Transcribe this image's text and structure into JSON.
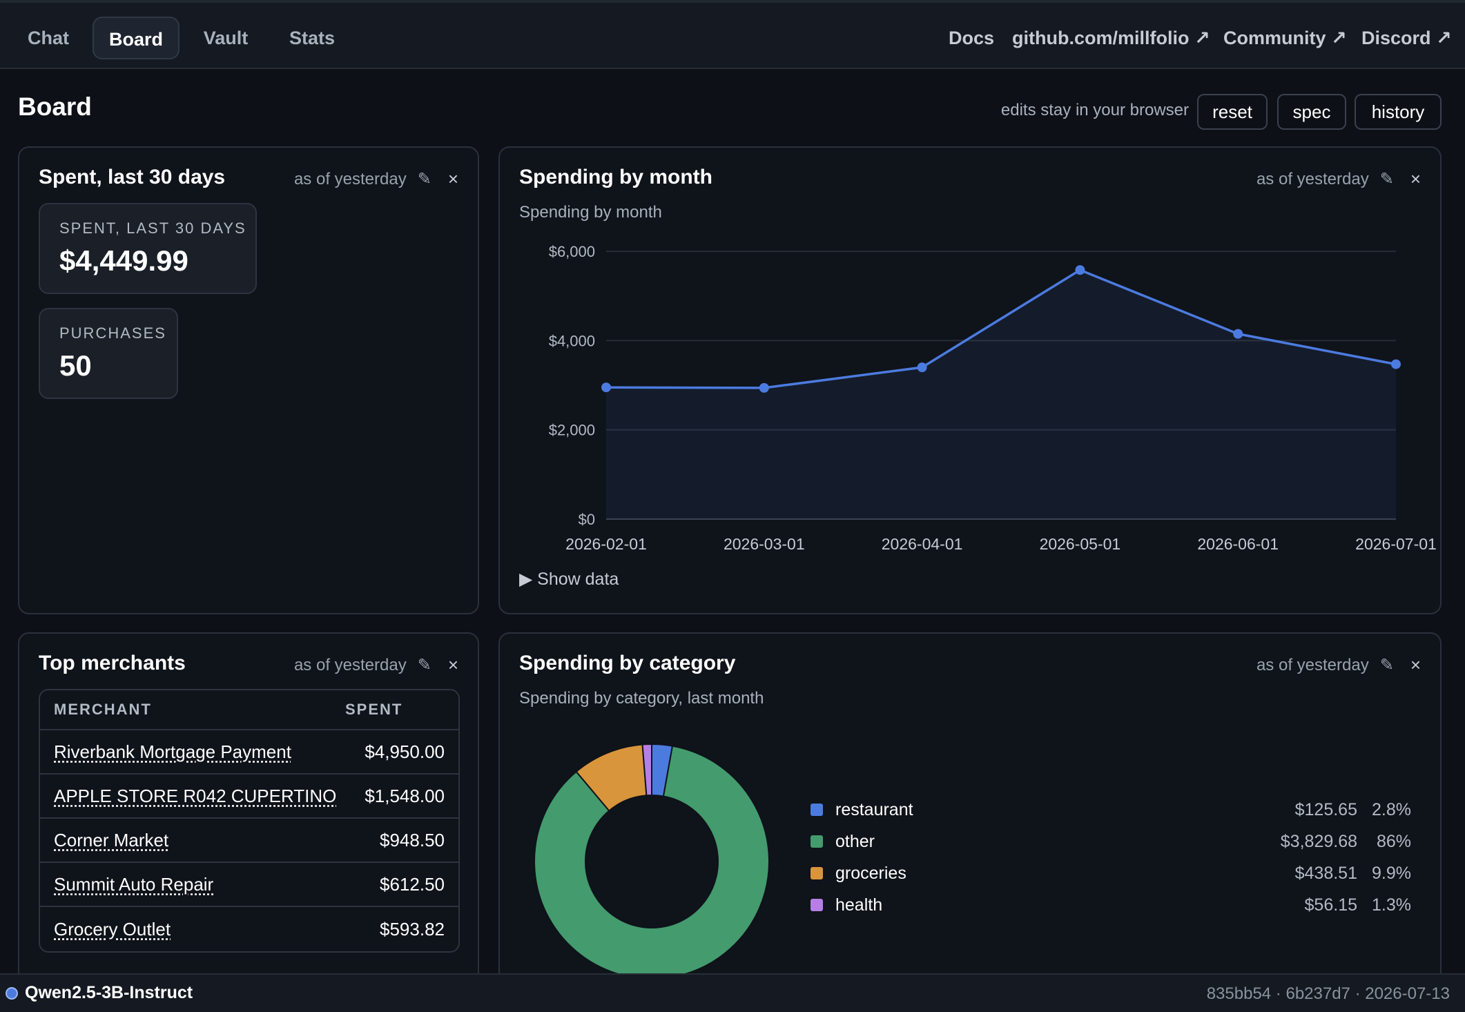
{
  "nav": {
    "tabs": [
      {
        "label": "Chat"
      },
      {
        "label": "Board"
      },
      {
        "label": "Vault"
      },
      {
        "label": "Stats"
      }
    ],
    "links": [
      {
        "label": "Docs"
      },
      {
        "label": "github.com/millfolio ↗"
      },
      {
        "label": "Community ↗"
      },
      {
        "label": "Discord ↗"
      }
    ]
  },
  "page": {
    "title": "Board",
    "note": "edits stay in your browser",
    "buttons": {
      "reset": "reset",
      "spec": "spec",
      "history": "history"
    }
  },
  "cards": {
    "spent": {
      "title": "Spent, last 30 days",
      "meta": "as of yesterday",
      "stats": [
        {
          "label": "SPENT, LAST 30 DAYS",
          "value": "$4,449.99"
        },
        {
          "label": "PURCHASES",
          "value": "50"
        }
      ]
    },
    "by_month": {
      "title": "Spending by month",
      "meta": "as of yesterday",
      "subtitle": "Spending by month",
      "show_data": "▶ Show data"
    },
    "merchants": {
      "title": "Top merchants",
      "meta": "as of yesterday",
      "headers": {
        "merchant": "MERCHANT",
        "spent": "SPENT"
      },
      "rows": [
        {
          "name": "Riverbank Mortgage Payment",
          "amount": "$4,950.00"
        },
        {
          "name": "APPLE STORE R042 CUPERTINO",
          "amount": "$1,548.00"
        },
        {
          "name": "Corner Market",
          "amount": "$948.50"
        },
        {
          "name": "Summit Auto Repair",
          "amount": "$612.50"
        },
        {
          "name": "Grocery Outlet",
          "amount": "$593.82"
        }
      ]
    },
    "by_category": {
      "title": "Spending by category",
      "meta": "as of yesterday",
      "subtitle": "Spending by category, last month"
    }
  },
  "icons": {
    "edit": "✎",
    "close": "×"
  },
  "status": {
    "model": "Qwen2.5-3B-Instruct",
    "build": "835bb54 · 6b237d7 · 2026-07-13"
  },
  "colors": {
    "line": "#4c7be0",
    "restaurant": "#4c7be0",
    "other": "#449b6e",
    "groceries": "#d9953c",
    "health": "#b77fe6"
  },
  "chart_data": [
    {
      "type": "area",
      "x": [
        "2026-02-01",
        "2026-03-01",
        "2026-04-01",
        "2026-05-01",
        "2026-06-01",
        "2026-07-01"
      ],
      "values": [
        2950,
        2940,
        3400,
        5580,
        4150,
        3470
      ],
      "y_ticks": [
        "$0",
        "$2,000",
        "$4,000",
        "$6,000"
      ],
      "ylim": [
        0,
        6000
      ],
      "grid": true
    },
    {
      "type": "pie",
      "donut": true,
      "categories": [
        "restaurant",
        "other",
        "groceries",
        "health"
      ],
      "values": [
        125.65,
        3829.68,
        438.51,
        56.15
      ],
      "amount_labels": [
        "$125.65",
        "$3,829.68",
        "$438.51",
        "$56.15"
      ],
      "percent_labels": [
        "2.8%",
        "86%",
        "9.9%",
        "1.3%"
      ],
      "legend": "right"
    }
  ]
}
